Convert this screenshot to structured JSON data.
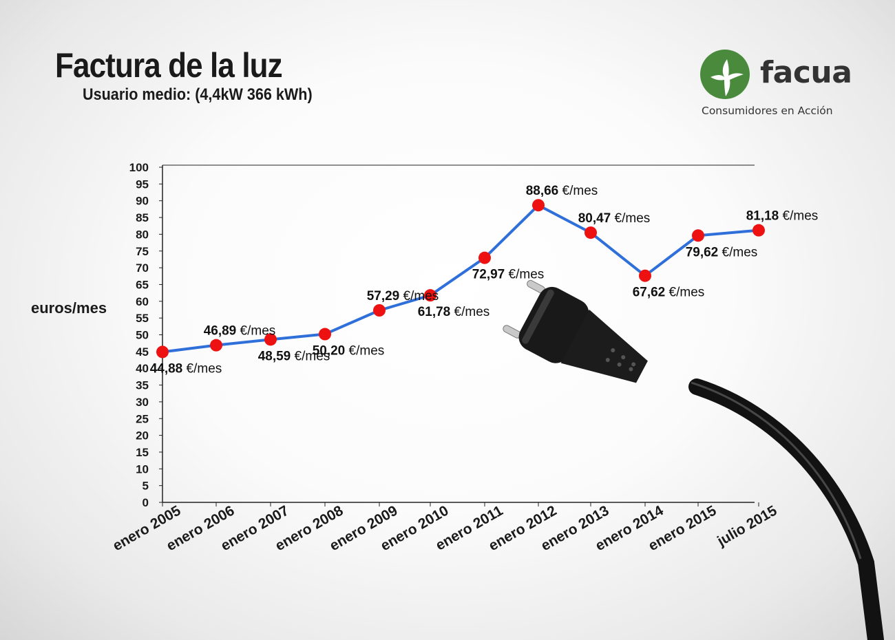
{
  "header": {
    "title": "Factura de la luz",
    "subtitle": "Usuario medio: (4,4kW 366 kWh)"
  },
  "logo": {
    "name": "facua",
    "tagline": "Consumidores en Acción",
    "brand_color": "#4a8a3c"
  },
  "colors": {
    "line": "#2f6fd9",
    "marker": "#ee1111",
    "axis": "#222222"
  },
  "chart_data": {
    "type": "line",
    "title": "Factura de la luz",
    "subtitle": "Usuario medio: (4,4kW 366 kWh)",
    "xlabel": "",
    "ylabel": "euros/mes",
    "ylim": [
      0,
      100
    ],
    "yticks": [
      0,
      5,
      10,
      15,
      20,
      25,
      30,
      35,
      40,
      45,
      50,
      55,
      60,
      65,
      70,
      75,
      80,
      85,
      90,
      95,
      100
    ],
    "grid": false,
    "categories": [
      "enero 2005",
      "enero 2006",
      "enero 2007",
      "enero 2008",
      "enero 2009",
      "enero 2010",
      "enero 2011",
      "enero 2012",
      "enero 2013",
      "enero 2014",
      "enero 2015",
      "julio 2015"
    ],
    "values": [
      44.88,
      46.89,
      48.59,
      50.2,
      57.29,
      61.78,
      72.97,
      88.66,
      80.47,
      67.62,
      79.62,
      81.18
    ],
    "labels": [
      "44,88 €/mes",
      "46,89 €/mes",
      "48,59 €/mes",
      "50,20 €/mes",
      "57,29 €/mes",
      "61,78 €/mes",
      "72,97 €/mes",
      "88,66 €/mes",
      "80,47 €/mes",
      "67,62 €/mes",
      "79,62 €/mes",
      "81,18 €/mes"
    ],
    "label_positions": [
      "below",
      "above",
      "below",
      "below",
      "above",
      "below",
      "below",
      "above",
      "above",
      "below",
      "below",
      "above"
    ]
  }
}
